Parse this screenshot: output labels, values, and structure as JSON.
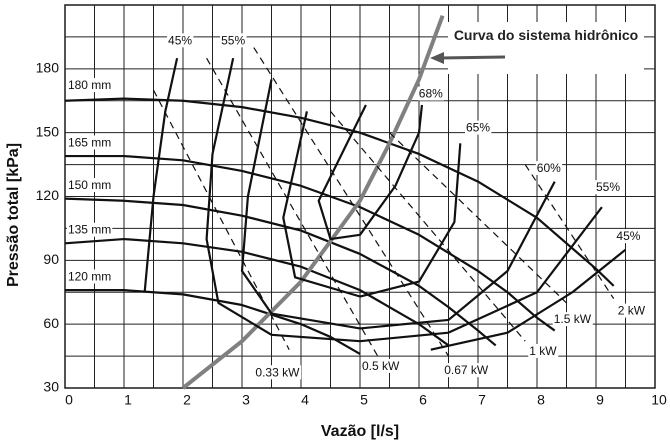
{
  "chart_data": {
    "type": "line",
    "xlabel": "Vazão [l/s]",
    "ylabel": "Pressão total [kPa]",
    "xlim": [
      0,
      10
    ],
    "xticks": [
      0,
      1,
      2,
      3,
      4,
      5,
      6,
      7,
      8,
      9,
      10
    ],
    "ylim": [
      30,
      210
    ],
    "yticks": [
      30,
      60,
      90,
      120,
      150,
      180
    ],
    "xminorticks": [
      0.5,
      1.5,
      2.5,
      3.5,
      4.5,
      5.5,
      6.5,
      7.5,
      8.5,
      9.5
    ],
    "yminorticks": [
      45,
      75,
      105,
      135,
      165,
      195,
      210
    ],
    "grid": true,
    "series": [
      {
        "name": "180 mm",
        "color": "#111111",
        "dashed": false,
        "x": [
          0,
          1,
          2,
          3,
          4,
          5,
          6,
          7,
          8,
          9,
          9.3
        ],
        "values": [
          165,
          166,
          165,
          162,
          157,
          150,
          140,
          127,
          110,
          86,
          78
        ]
      },
      {
        "name": "165 mm",
        "color": "#111111",
        "dashed": false,
        "x": [
          0,
          1,
          2,
          3,
          4,
          5,
          6,
          7,
          7.5,
          8,
          8.3
        ],
        "values": [
          139,
          139,
          137,
          132,
          125,
          115,
          102,
          85,
          75,
          63,
          57
        ]
      },
      {
        "name": "150 mm",
        "color": "#111111",
        "dashed": false,
        "x": [
          0,
          1,
          2,
          3,
          4,
          5,
          6,
          6.5,
          7,
          7.3
        ],
        "values": [
          119,
          118,
          116,
          111,
          104,
          93,
          78,
          68,
          57,
          50
        ]
      },
      {
        "name": "135 mm",
        "color": "#111111",
        "dashed": false,
        "x": [
          0,
          1,
          2,
          3,
          4,
          5,
          5.5,
          6,
          6.5
        ],
        "values": [
          98,
          100,
          98,
          94,
          87,
          76,
          68,
          60,
          50
        ]
      },
      {
        "name": "120 mm",
        "color": "#111111",
        "dashed": false,
        "x": [
          0,
          1,
          2,
          3,
          4,
          4.5,
          5
        ],
        "values": [
          76,
          76,
          74,
          69,
          60,
          54,
          46
        ]
      },
      {
        "name": "Curva do sistema hidrônico",
        "color": "#808080",
        "dashed": false,
        "x": [
          2,
          3,
          4,
          5,
          5.5,
          6,
          6.4
        ],
        "values": [
          30,
          52,
          80,
          118,
          145,
          175,
          205
        ]
      },
      {
        "name": "45%",
        "color": "#111111",
        "dashed": false,
        "x": [
          1.35,
          1.5,
          1.7,
          1.9
        ],
        "values": [
          75,
          120,
          160,
          185
        ]
      },
      {
        "name": "55%",
        "color": "#111111",
        "dashed": false,
        "x": [
          2.85,
          2.5,
          2.4,
          2.6,
          3.5,
          5,
          6.5,
          8,
          9.1
        ],
        "values": [
          185,
          140,
          100,
          70,
          55,
          52,
          56,
          75,
          115
        ]
      },
      {
        "name": "60%",
        "color": "#111111",
        "dashed": false,
        "x": [
          3.5,
          3.1,
          3,
          3.5,
          5,
          6.5,
          7.5,
          8.3
        ],
        "values": [
          175,
          120,
          85,
          65,
          58,
          62,
          85,
          127
        ]
      },
      {
        "name": "65%",
        "color": "#111111",
        "dashed": false,
        "x": [
          4.1,
          3.7,
          3.9,
          5,
          6,
          6.6,
          6.7
        ],
        "values": [
          160,
          110,
          82,
          73,
          80,
          108,
          145
        ]
      },
      {
        "name": "68%",
        "color": "#111111",
        "dashed": false,
        "x": [
          5.1,
          4.3,
          4.5,
          5,
          5.6,
          6,
          6.05
        ],
        "values": [
          163,
          118,
          100,
          102,
          125,
          150,
          163
        ]
      },
      {
        "name": "45%",
        "color": "#111111",
        "dashed": false,
        "x": [
          6.2,
          7.5,
          8.6,
          9.5
        ],
        "values": [
          48,
          56,
          75,
          95
        ]
      },
      {
        "name": "0.33 kW",
        "color": "#111111",
        "dashed": true,
        "x": [
          1.5,
          3.8
        ],
        "values": [
          170,
          48
        ]
      },
      {
        "name": "0.5 kW",
        "color": "#111111",
        "dashed": true,
        "x": [
          2.4,
          5.3
        ],
        "values": [
          185,
          45
        ]
      },
      {
        "name": "0.67 kW",
        "color": "#111111",
        "dashed": true,
        "x": [
          3.2,
          6.5
        ],
        "values": [
          190,
          45
        ]
      },
      {
        "name": "1 kW",
        "color": "#111111",
        "dashed": true,
        "x": [
          4.5,
          7.8
        ],
        "values": [
          160,
          52
        ]
      },
      {
        "name": "1.5 kW",
        "color": "#111111",
        "dashed": true,
        "x": [
          5.5,
          8.5
        ],
        "values": [
          150,
          70
        ]
      },
      {
        "name": "2 kW",
        "color": "#111111",
        "dashed": true,
        "x": [
          7.8,
          9.3
        ],
        "values": [
          135,
          72
        ]
      }
    ]
  }
}
